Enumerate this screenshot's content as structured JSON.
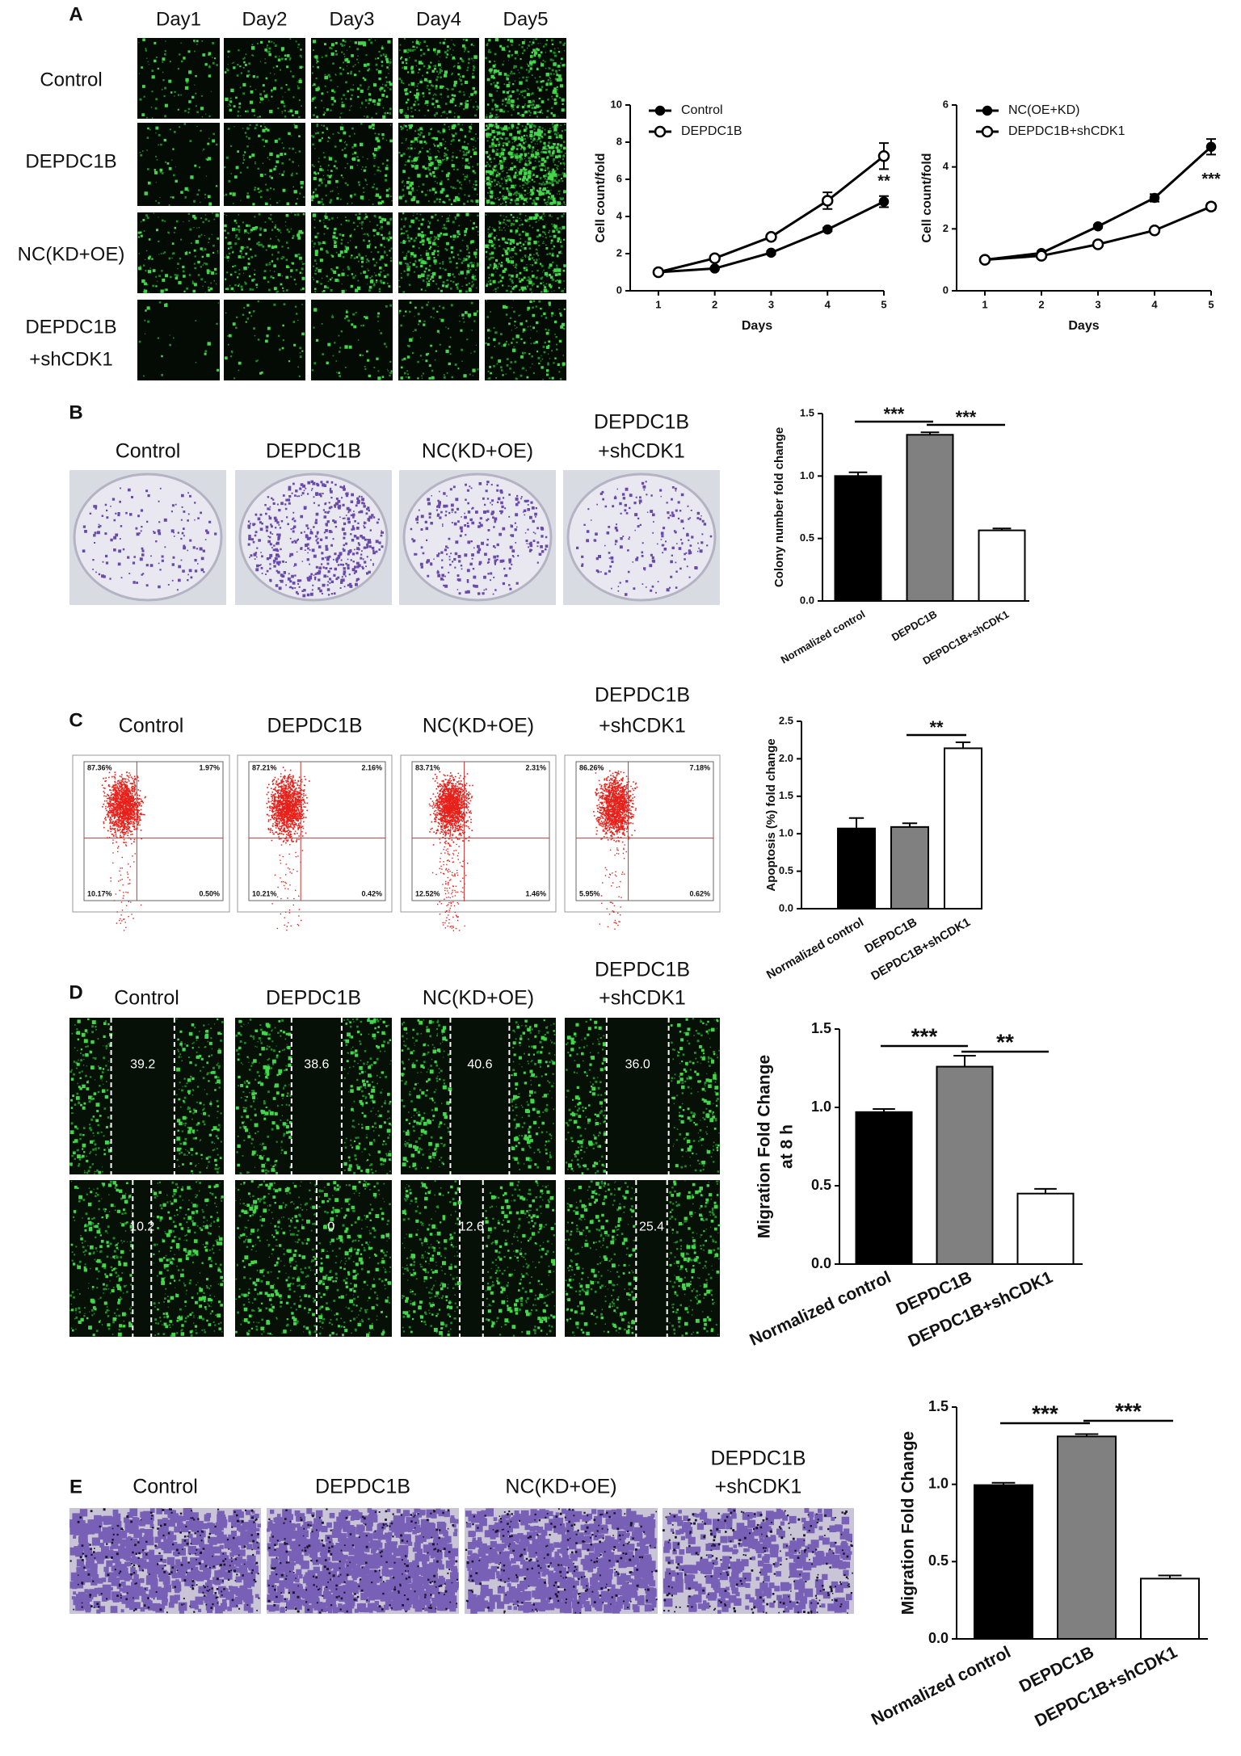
{
  "panel_labels": [
    "A",
    "B",
    "C",
    "D",
    "E"
  ],
  "panel_a": {
    "days": [
      "Day1",
      "Day2",
      "Day3",
      "Day4",
      "Day5"
    ],
    "rows": [
      [
        "Control"
      ],
      [
        "DEPDC1B"
      ],
      [
        "NC(KD+OE)"
      ],
      [
        "DEPDC1B",
        "+shCDK1"
      ]
    ]
  },
  "panel_b": {
    "labels": [
      [
        "Control"
      ],
      [
        "DEPDC1B"
      ],
      [
        "NC(KD+OE)"
      ],
      [
        "DEPDC1B",
        "+shCDK1"
      ]
    ]
  },
  "panel_c": {
    "labels": [
      [
        "Control"
      ],
      [
        "DEPDC1B"
      ],
      [
        "NC(KD+OE)"
      ],
      [
        "DEPDC1B",
        "+shCDK1"
      ]
    ],
    "quadrants": [
      [
        "87.36%",
        "1.97%",
        "10.17%",
        "0.50%"
      ],
      [
        "87.21%",
        "2.16%",
        "10.21%",
        "0.42%"
      ],
      [
        "83.71%",
        "2.31%",
        "12.52%",
        "1.46%"
      ],
      [
        "86.26%",
        "7.18%",
        "5.95%",
        "0.62%"
      ]
    ]
  },
  "panel_d": {
    "labels": [
      [
        "Control"
      ],
      [
        "DEPDC1B"
      ],
      [
        "NC(KD+OE)"
      ],
      [
        "DEPDC1B",
        "+shCDK1"
      ]
    ],
    "gaps": [
      [
        "39.2",
        "10.2"
      ],
      [
        "38.6",
        "0"
      ],
      [
        "40.6",
        "12.6"
      ],
      [
        "36.0",
        "25.4"
      ]
    ]
  },
  "panel_e": {
    "labels": [
      [
        "Control"
      ],
      [
        "DEPDC1B"
      ],
      [
        "NC(KD+OE)"
      ],
      [
        "DEPDC1B",
        "+shCDK1"
      ]
    ]
  },
  "chart_data": [
    {
      "type": "line",
      "x": [
        1,
        2,
        3,
        4,
        5
      ],
      "xlim": [
        0.5,
        5
      ],
      "xticks": [
        1,
        2,
        3,
        4,
        5
      ],
      "ylim": [
        0,
        10
      ],
      "yticks": [
        0,
        2,
        4,
        6,
        8,
        10
      ],
      "x_label": "Days",
      "y_label": "Cell count/fold",
      "series": [
        {
          "name": "Control",
          "color": "#000000",
          "marker": "filled",
          "values": [
            1,
            1.2,
            2.05,
            3.3,
            4.8
          ],
          "errors": [
            0.03,
            0.05,
            0.08,
            0.1,
            0.3
          ]
        },
        {
          "name": "DEPDC1B",
          "color": "#000000",
          "marker": "open",
          "values": [
            1,
            1.75,
            2.9,
            4.85,
            7.25
          ],
          "errors": [
            0.03,
            0.15,
            0.1,
            0.45,
            0.7
          ]
        }
      ],
      "annotations": [
        "**"
      ]
    },
    {
      "type": "line",
      "x": [
        1,
        2,
        3,
        4,
        5
      ],
      "xlim": [
        0.5,
        5
      ],
      "xticks": [
        1,
        2,
        3,
        4,
        5
      ],
      "ylim": [
        0,
        6
      ],
      "yticks": [
        0,
        2,
        4,
        6
      ],
      "x_label": "Days",
      "y_label": "Cell count/fold",
      "series": [
        {
          "name": "NC(OE+KD)",
          "color": "#000000",
          "marker": "filled",
          "values": [
            1,
            1.22,
            2.08,
            3.0,
            4.65
          ],
          "errors": [
            0.02,
            0.05,
            0.05,
            0.12,
            0.25
          ]
        },
        {
          "name": "DEPDC1B+shCDK1",
          "color": "#000000",
          "marker": "open",
          "values": [
            1,
            1.13,
            1.5,
            1.95,
            2.72
          ],
          "errors": [
            0.02,
            0.04,
            0.05,
            0.05,
            0.1
          ]
        }
      ],
      "annotations": [
        "***"
      ]
    },
    {
      "type": "bar",
      "categories": [
        "Normalized control",
        "DEPDC1B",
        "DEPDC1B+shCDK1"
      ],
      "values": [
        1.0,
        1.33,
        0.565
      ],
      "errors": [
        0.03,
        0.02,
        0.015
      ],
      "colors": [
        "#000000",
        "#808080",
        "#ffffff"
      ],
      "ylim": [
        0,
        1.5
      ],
      "yticks": [
        {
          "value": 0,
          "label": "0.0"
        },
        0.5,
        {
          "value": 1,
          "label": "1.0"
        },
        1.5
      ],
      "y_label": [
        "Colony number fold change"
      ],
      "annotations": [
        "***",
        "***"
      ]
    },
    {
      "type": "bar",
      "categories": [
        "Normalized control",
        "DEPDC1B",
        "DEPDC1B+shCDK1"
      ],
      "values": [
        1.07,
        1.09,
        2.14
      ],
      "errors": [
        0.14,
        0.05,
        0.08
      ],
      "colors": [
        "#000000",
        "#808080",
        "#ffffff"
      ],
      "ylim": [
        0,
        2.5
      ],
      "yticks": [
        {
          "value": 0,
          "label": "0.0"
        },
        0.5,
        {
          "value": 1,
          "label": "1.0"
        },
        1.5,
        {
          "value": 2,
          "label": "2.0"
        },
        2.5
      ],
      "y_label": [
        "Apoptosis (%) fold change"
      ],
      "annotations": [
        "**"
      ]
    },
    {
      "type": "bar",
      "categories": [
        "Normalized control",
        "DEPDC1B",
        "DEPDC1B+shCDK1"
      ],
      "values": [
        0.97,
        1.26,
        0.45
      ],
      "errors": [
        0.02,
        0.07,
        0.03
      ],
      "colors": [
        "#000000",
        "#808080",
        "#ffffff"
      ],
      "ylim": [
        0,
        1.5
      ],
      "yticks": [
        {
          "value": 0,
          "label": "0.0"
        },
        0.5,
        {
          "value": 1,
          "label": "1.0"
        },
        1.5
      ],
      "y_label": [
        "Migration Fold Change",
        "at 8 h"
      ],
      "annotations": [
        "***",
        "**"
      ]
    },
    {
      "type": "bar",
      "categories": [
        "Normalized control",
        "DEPDC1B",
        "DEPDC1B+shCDK1"
      ],
      "values": [
        0.995,
        1.31,
        0.39
      ],
      "errors": [
        0.015,
        0.015,
        0.02
      ],
      "colors": [
        "#000000",
        "#808080",
        "#ffffff"
      ],
      "ylim": [
        0,
        1.5
      ],
      "yticks": [
        {
          "value": 0,
          "label": "0.0"
        },
        0.5,
        {
          "value": 1,
          "label": "1.0"
        },
        1.5
      ],
      "y_label": [
        "Migration Fold Change"
      ],
      "annotations": [
        "***",
        "***"
      ]
    }
  ]
}
